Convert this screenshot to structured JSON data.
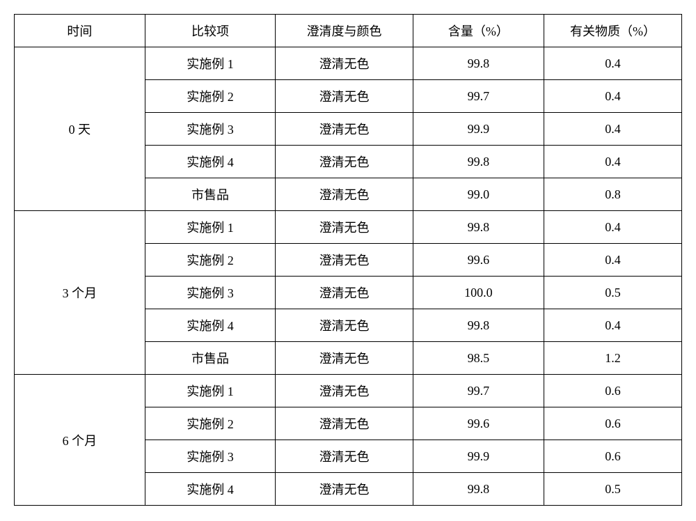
{
  "table": {
    "headers": {
      "time": "时间",
      "item": "比较项",
      "clarity": "澄清度与颜色",
      "content": "含量（%）",
      "impurity": "有关物质（%）"
    },
    "groups": [
      {
        "time": "0 天",
        "rows": [
          {
            "item": "实施例 1",
            "clarity": "澄清无色",
            "content": "99.8",
            "impurity": "0.4"
          },
          {
            "item": "实施例 2",
            "clarity": "澄清无色",
            "content": "99.7",
            "impurity": "0.4"
          },
          {
            "item": "实施例 3",
            "clarity": "澄清无色",
            "content": "99.9",
            "impurity": "0.4"
          },
          {
            "item": "实施例 4",
            "clarity": "澄清无色",
            "content": "99.8",
            "impurity": "0.4"
          },
          {
            "item": "市售品",
            "clarity": "澄清无色",
            "content": "99.0",
            "impurity": "0.8"
          }
        ]
      },
      {
        "time": "3 个月",
        "rows": [
          {
            "item": "实施例 1",
            "clarity": "澄清无色",
            "content": "99.8",
            "impurity": "0.4"
          },
          {
            "item": "实施例 2",
            "clarity": "澄清无色",
            "content": "99.6",
            "impurity": "0.4"
          },
          {
            "item": "实施例 3",
            "clarity": "澄清无色",
            "content": "100.0",
            "impurity": "0.5"
          },
          {
            "item": "实施例 4",
            "clarity": "澄清无色",
            "content": "99.8",
            "impurity": "0.4"
          },
          {
            "item": "市售品",
            "clarity": "澄清无色",
            "content": "98.5",
            "impurity": "1.2"
          }
        ]
      },
      {
        "time": "6 个月",
        "rows": [
          {
            "item": "实施例 1",
            "clarity": "澄清无色",
            "content": "99.7",
            "impurity": "0.6"
          },
          {
            "item": "实施例 2",
            "clarity": "澄清无色",
            "content": "99.6",
            "impurity": "0.6"
          },
          {
            "item": "实施例 3",
            "clarity": "澄清无色",
            "content": "99.9",
            "impurity": "0.6"
          },
          {
            "item": "实施例 4",
            "clarity": "澄清无色",
            "content": "99.8",
            "impurity": "0.5"
          }
        ]
      }
    ]
  }
}
